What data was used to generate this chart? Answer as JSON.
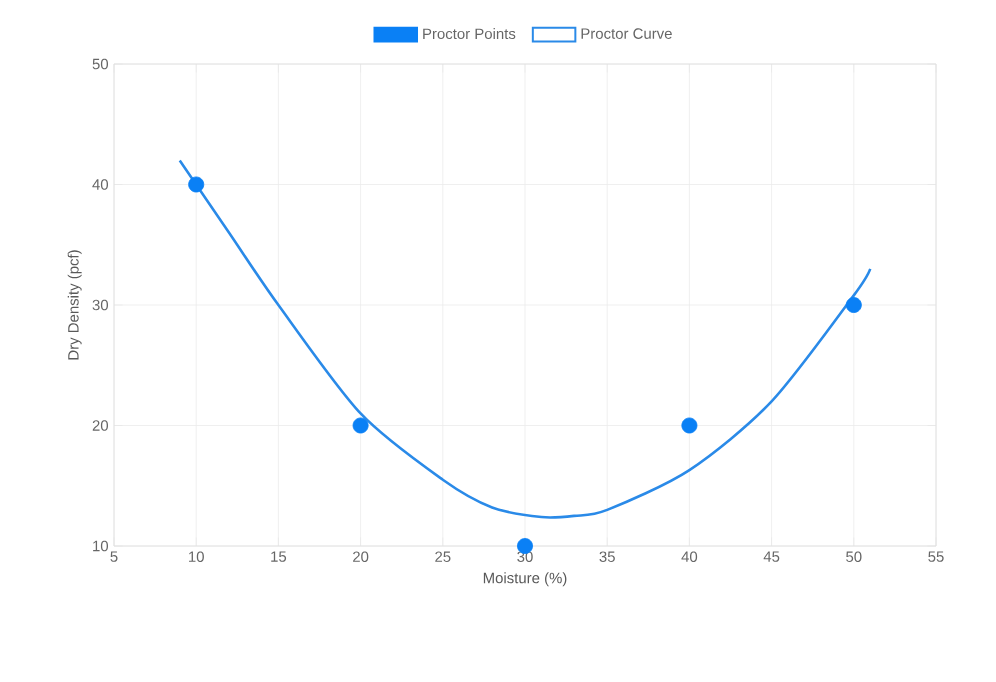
{
  "chart_data": {
    "type": "scatter",
    "xlabel": "Moisture (%)",
    "ylabel": "Dry Density (pcf)",
    "xlim": [
      5,
      55
    ],
    "xticks": [
      5,
      10,
      15,
      20,
      25,
      30,
      35,
      40,
      45,
      50,
      55
    ],
    "ylim": [
      10,
      50
    ],
    "yticks": [
      10,
      20,
      30,
      40,
      50
    ],
    "grid": true,
    "legend": "top",
    "series": [
      {
        "name": "Proctor Points",
        "marker": "circle",
        "color": "#0a80f5",
        "x": [
          10,
          20,
          30,
          40,
          50
        ],
        "values": [
          40,
          20,
          10,
          20,
          30
        ]
      },
      {
        "name": "Proctor Curve",
        "type": "line",
        "marker": "none",
        "color": "#2a8ae8",
        "x": [
          9,
          12,
          15,
          20,
          25,
          28,
          31,
          33,
          35,
          40,
          45,
          50,
          51
        ],
        "values": [
          42,
          36,
          30,
          21,
          15.5,
          13.2,
          12.4,
          12.5,
          13,
          16.3,
          22,
          30.8,
          33
        ]
      }
    ]
  }
}
